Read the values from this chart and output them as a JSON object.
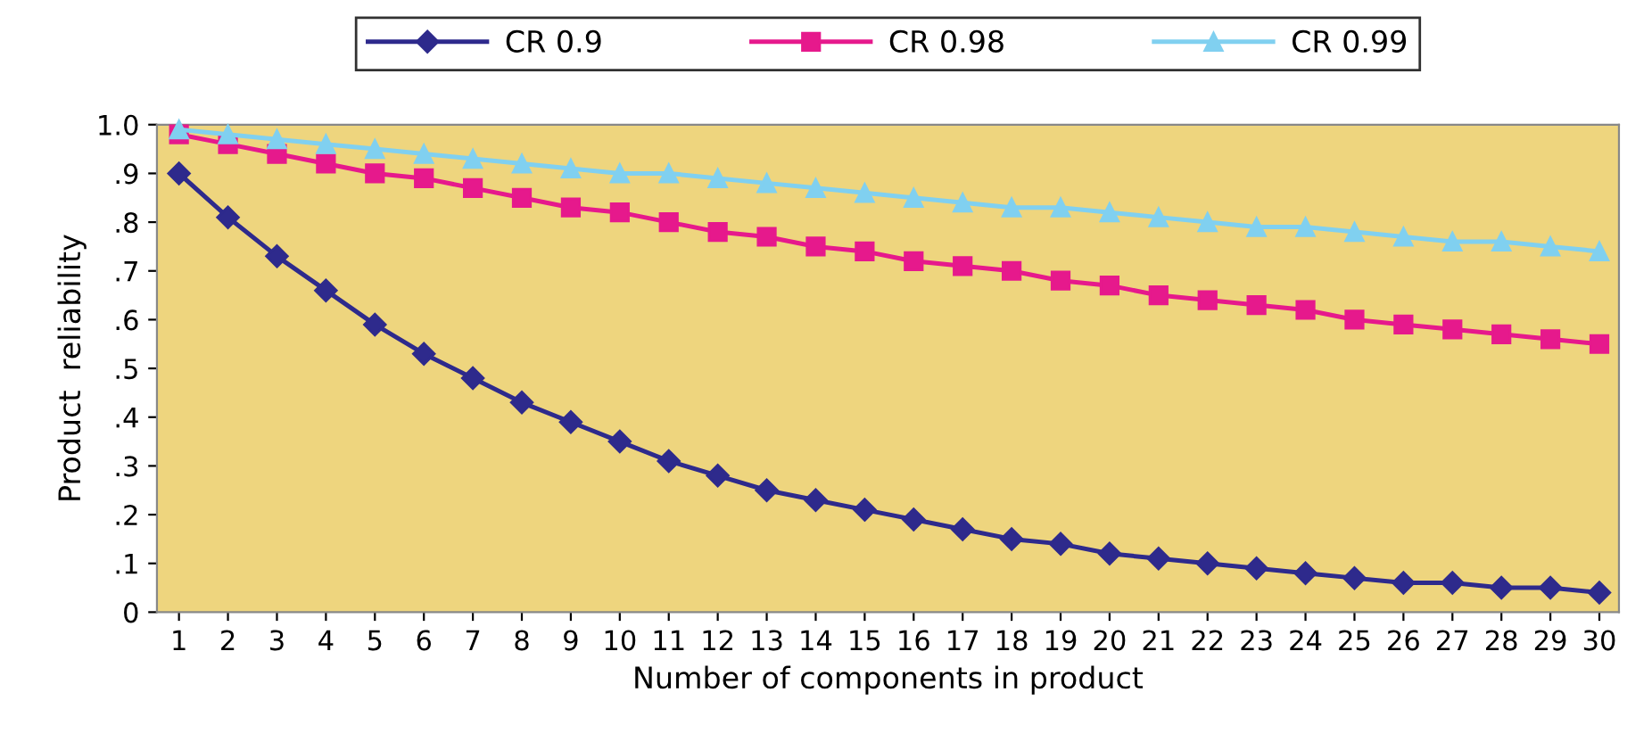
{
  "chart_data": {
    "type": "line",
    "xlabel": "Number of components in product",
    "ylabel": "Product  reliability",
    "categories": [
      "1",
      "2",
      "3",
      "4",
      "5",
      "6",
      "7",
      "8",
      "9",
      "10",
      "11",
      "12",
      "13",
      "14",
      "15",
      "16",
      "17",
      "18",
      "19",
      "20",
      "21",
      "22",
      "23",
      "24",
      "25",
      "26",
      "27",
      "28",
      "29",
      "30"
    ],
    "ylim": [
      0,
      1
    ],
    "yticks": [
      {
        "value": 0,
        "label": "0"
      },
      {
        "value": 0.1,
        "label": ".1"
      },
      {
        "value": 0.2,
        "label": ".2"
      },
      {
        "value": 0.3,
        "label": ".3"
      },
      {
        "value": 0.4,
        "label": ".4"
      },
      {
        "value": 0.5,
        "label": ".5"
      },
      {
        "value": 0.6,
        "label": ".6"
      },
      {
        "value": 0.7,
        "label": ".7"
      },
      {
        "value": 0.8,
        "label": ".8"
      },
      {
        "value": 0.9,
        "label": ".9"
      },
      {
        "value": 1,
        "label": "1.0"
      }
    ],
    "grid": false,
    "legend": "top",
    "line_style": "solid",
    "series": [
      {
        "name": "CR 0.9",
        "color": "#2e2a8c",
        "marker": "diamond",
        "values": [
          0.9,
          0.81,
          0.73,
          0.66,
          0.59,
          0.53,
          0.48,
          0.43,
          0.39,
          0.35,
          0.31,
          0.28,
          0.25,
          0.23,
          0.21,
          0.19,
          0.17,
          0.15,
          0.14,
          0.12,
          0.11,
          0.1,
          0.09,
          0.08,
          0.07,
          0.06,
          0.06,
          0.05,
          0.05,
          0.04
        ]
      },
      {
        "name": "CR 0.98",
        "color": "#e6198c",
        "marker": "square",
        "values": [
          0.98,
          0.96,
          0.94,
          0.92,
          0.9,
          0.89,
          0.87,
          0.85,
          0.83,
          0.82,
          0.8,
          0.78,
          0.77,
          0.75,
          0.74,
          0.72,
          0.71,
          0.7,
          0.68,
          0.67,
          0.65,
          0.64,
          0.63,
          0.62,
          0.6,
          0.59,
          0.58,
          0.57,
          0.56,
          0.55
        ]
      },
      {
        "name": "CR 0.99",
        "color": "#80d0f0",
        "marker": "triangle",
        "values": [
          0.99,
          0.98,
          0.97,
          0.96,
          0.95,
          0.94,
          0.93,
          0.92,
          0.91,
          0.9,
          0.9,
          0.89,
          0.88,
          0.87,
          0.86,
          0.85,
          0.84,
          0.83,
          0.83,
          0.82,
          0.81,
          0.8,
          0.79,
          0.79,
          0.78,
          0.77,
          0.76,
          0.76,
          0.75,
          0.74
        ]
      }
    ]
  }
}
